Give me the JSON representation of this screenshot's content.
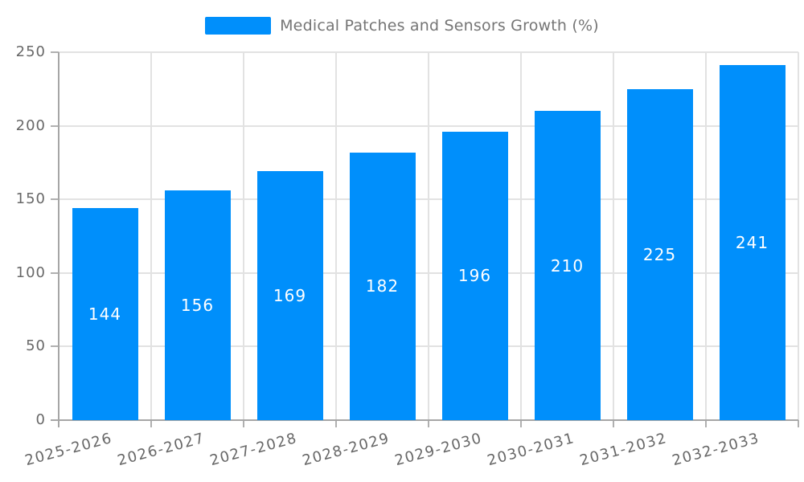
{
  "chart_data": {
    "type": "bar",
    "title": "Medical Patches and Sensors Growth (%)",
    "legend": {
      "label": "Medical Patches and Sensors Growth (%)",
      "position": "top"
    },
    "categories": [
      "2025-2026",
      "2026-2027",
      "2027-2028",
      "2028-2029",
      "2029-2030",
      "2030-2031",
      "2031-2032",
      "2032-2033"
    ],
    "series": [
      {
        "name": "Medical Patches and Sensors Growth (%)",
        "values": [
          144,
          156,
          169,
          182,
          196,
          210,
          225,
          241
        ]
      }
    ],
    "xlabel": "",
    "ylabel": "",
    "ylim": [
      0,
      250
    ],
    "yticks": [
      0,
      50,
      100,
      150,
      200,
      250
    ],
    "grid": true,
    "bar_labels_shown": true,
    "x_label_rotation_deg": -15,
    "colors": {
      "bar": "#008FFB",
      "bar_value_label": "#FFFFFF",
      "grid_line": "#E2E2E2",
      "axis_line": "#A6A6A6",
      "tick_mark": "#B0B0B0",
      "axis_text": "#686868",
      "legend_text": "#757575",
      "background": "#FFFFFF"
    }
  }
}
